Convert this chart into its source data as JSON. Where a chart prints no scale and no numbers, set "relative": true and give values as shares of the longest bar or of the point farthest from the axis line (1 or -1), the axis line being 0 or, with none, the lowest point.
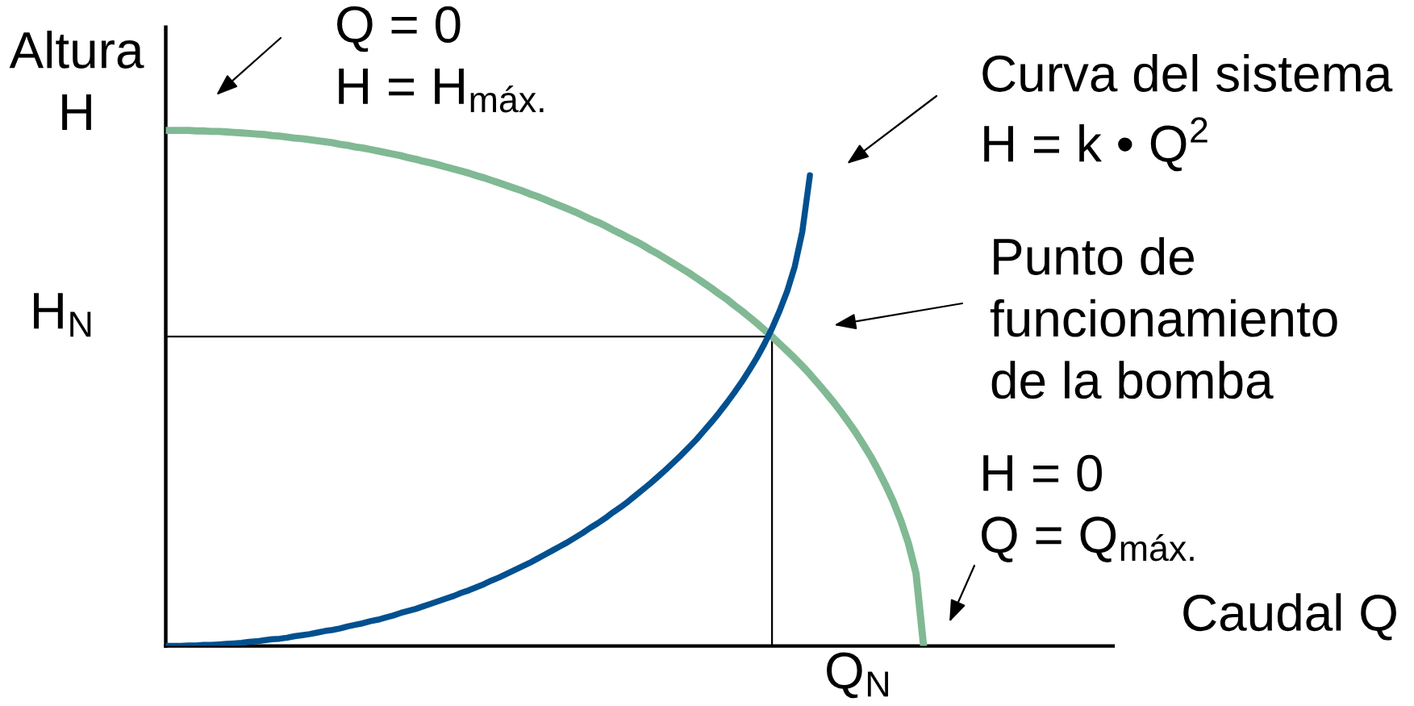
{
  "chart_data": {
    "type": "line",
    "relative": true,
    "xlabel": "Caudal Q",
    "ylabel": "Altura\nH",
    "categories": [
      null,
      null,
      null,
      null,
      null,
      null,
      null,
      null,
      null,
      null,
      null,
      null,
      null,
      null,
      null,
      null,
      null,
      null,
      null,
      null,
      null,
      null,
      null,
      null,
      null,
      null,
      null,
      null,
      null,
      null,
      null,
      null,
      null,
      null,
      null,
      null,
      null,
      null,
      null,
      null,
      null,
      null,
      null,
      null,
      null,
      null,
      null,
      null,
      null,
      null,
      null,
      null,
      null,
      null,
      null,
      null,
      null,
      null,
      null,
      null,
      null,
      null,
      null,
      null,
      null,
      null,
      null,
      null,
      null,
      null,
      null,
      null,
      null,
      null,
      null,
      null,
      null,
      null,
      null,
      null,
      null,
      null,
      null,
      null,
      null,
      null,
      null,
      null,
      null,
      null,
      null,
      null,
      null,
      null,
      null,
      null,
      null,
      null,
      null,
      null,
      null,
      null,
      null,
      null,
      null,
      null,
      null,
      null,
      null,
      null,
      null,
      null,
      null,
      null,
      null,
      null,
      null,
      null,
      null,
      null,
      null,
      null,
      null,
      null,
      null,
      null
    ],
    "series": [
      {
        "name": "H$_{N}$",
        "type": "step",
        "color": "#000000",
        "values": [
          0.6,
          0.6,
          0.6,
          0.6,
          0.6,
          0.6,
          0.6,
          0.6,
          0.6,
          0.6,
          0.6,
          0.6,
          0.6,
          0.6,
          0.6,
          0.6,
          0.6,
          0.6,
          0.6,
          0.6,
          0.6,
          0.6,
          0.6,
          0.6,
          0.6,
          0.6,
          0.6,
          0.6,
          0.6,
          0.6,
          0.6,
          0.6,
          0.6,
          0.6,
          0.6,
          0.6,
          0.6,
          0.6,
          0.6,
          0.6,
          0.6,
          0.6,
          0.6,
          0.6,
          0.6,
          0.6,
          0.6,
          0.6,
          0.6,
          0.6,
          0.6,
          0.6,
          0.6,
          0.6,
          0.6,
          0.6,
          0.6,
          0.6,
          0.6,
          0.6,
          0.6,
          0.6,
          0.6,
          0.6,
          0.6,
          0.6,
          0.6,
          0.6,
          0.6,
          0.6,
          0.6,
          0.6,
          0.6,
          0.6,
          0.6,
          0.6,
          0.6,
          0.6,
          0.6,
          0.6,
          0,
          null,
          null,
          null,
          null,
          null,
          null,
          null,
          null,
          null,
          null,
          null,
          null,
          null,
          null,
          null,
          null,
          null,
          null,
          null,
          null,
          null,
          null,
          null,
          null,
          null,
          null,
          null,
          null,
          null,
          null,
          null,
          null,
          null,
          null,
          null,
          null,
          null,
          null,
          null,
          null,
          null,
          null,
          null,
          null,
          null
        ]
      },
      {
        "color": "#80b994",
        "values": [
          1.0,
          1.0,
          1.0,
          1.0,
          0.999,
          0.999,
          0.998,
          0.998,
          0.997,
          0.996,
          0.995,
          0.994,
          0.993,
          0.992,
          0.99,
          0.989,
          0.987,
          0.985,
          0.984,
          0.982,
          0.98,
          0.978,
          0.976,
          0.973,
          0.971,
          0.968,
          0.966,
          0.963,
          0.96,
          0.957,
          0.954,
          0.951,
          0.947,
          0.944,
          0.94,
          0.937,
          0.933,
          0.929,
          0.925,
          0.921,
          0.917,
          0.912,
          0.908,
          0.903,
          0.898,
          0.893,
          0.888,
          0.883,
          0.877,
          0.872,
          0.866,
          0.86,
          0.854,
          0.848,
          0.842,
          0.835,
          0.828,
          0.822,
          0.815,
          0.807,
          0.8,
          0.792,
          0.785,
          0.777,
          0.768,
          0.76,
          0.751,
          0.742,
          0.733,
          0.724,
          0.714,
          0.704,
          0.694,
          0.683,
          0.673,
          0.661,
          0.65,
          0.638,
          0.626,
          0.613,
          0.6,
          0.586,
          0.572,
          0.558,
          0.543,
          0.527,
          0.51,
          0.493,
          0.475,
          0.456,
          0.436,
          0.415,
          0.392,
          0.368,
          0.341,
          0.312,
          0.28,
          0.243,
          0.199,
          0.141,
          0,
          null,
          null,
          null,
          null,
          null,
          null,
          null,
          null,
          null,
          null,
          null,
          null,
          null,
          null,
          null,
          null,
          null,
          null,
          null,
          null,
          null,
          null,
          null,
          null,
          null
        ]
      },
      {
        "color": "#02508f",
        "values": [
          0,
          0,
          0,
          0.001,
          0.001,
          0.002,
          0.002,
          0.003,
          0.004,
          0.005,
          0.006,
          0.008,
          0.009,
          0.011,
          0.013,
          0.014,
          0.016,
          0.019,
          0.021,
          0.023,
          0.026,
          0.029,
          0.031,
          0.034,
          0.038,
          0.041,
          0.044,
          0.048,
          0.051,
          0.055,
          0.059,
          0.064,
          0.068,
          0.072,
          0.077,
          0.082,
          0.087,
          0.092,
          0.097,
          0.103,
          0.108,
          0.114,
          0.12,
          0.127,
          0.133,
          0.14,
          0.147,
          0.154,
          0.161,
          0.169,
          0.177,
          0.185,
          0.193,
          0.201,
          0.21,
          0.219,
          0.229,
          0.238,
          0.248,
          0.259,
          0.269,
          0.28,
          0.292,
          0.304,
          0.316,
          0.329,
          0.342,
          0.356,
          0.37,
          0.385,
          0.4,
          0.417,
          0.434,
          0.452,
          0.471,
          0.491,
          0.512,
          0.535,
          0.559,
          0.586,
          0.616,
          0.65,
          0.688,
          0.736,
          0.804,
          0.913,
          null,
          null,
          null,
          null,
          null,
          null,
          null,
          null,
          null,
          null,
          null,
          null,
          null,
          null,
          null,
          null,
          null,
          null,
          null,
          null,
          null,
          null,
          null,
          null,
          null,
          null,
          null,
          null,
          null,
          null,
          null,
          null,
          null,
          null,
          null,
          null,
          null,
          null,
          null,
          null
        ]
      }
    ],
    "annotations": [
      "Q = 0\nH = H$_{máx.}$",
      "Curva del sistema\nH = k • Q$^{2}$",
      "Punto de\nfuncionamiento\nde la bomba",
      "H = 0\nQ = Q$_{máx.}$",
      "Q$_{N}$"
    ]
  }
}
